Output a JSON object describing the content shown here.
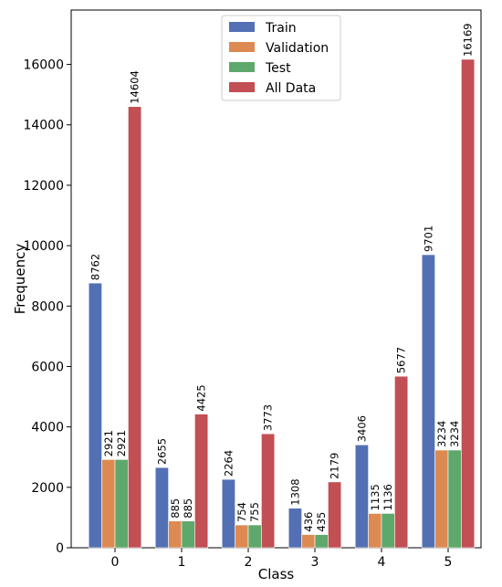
{
  "chart_data": {
    "type": "bar",
    "title": "",
    "xlabel": "Class",
    "ylabel": "Frequency",
    "categories": [
      "0",
      "1",
      "2",
      "3",
      "4",
      "5"
    ],
    "ylim": [
      0,
      17800
    ],
    "yticks": [
      0,
      2000,
      4000,
      6000,
      8000,
      10000,
      12000,
      14000,
      16000
    ],
    "grid": false,
    "legend_position": "top-center",
    "series": [
      {
        "name": "Train",
        "color": "#5470b4",
        "values": [
          8762,
          2655,
          2264,
          1308,
          3406,
          9701
        ]
      },
      {
        "name": "Validation",
        "color": "#dd8a52",
        "values": [
          2921,
          885,
          754,
          436,
          1135,
          3234
        ]
      },
      {
        "name": "Test",
        "color": "#5fa86b",
        "values": [
          2921,
          885,
          755,
          435,
          1136,
          3234
        ]
      },
      {
        "name": "All Data",
        "color": "#c14f54",
        "values": [
          14604,
          4425,
          3773,
          2179,
          5677,
          16169
        ]
      }
    ]
  }
}
